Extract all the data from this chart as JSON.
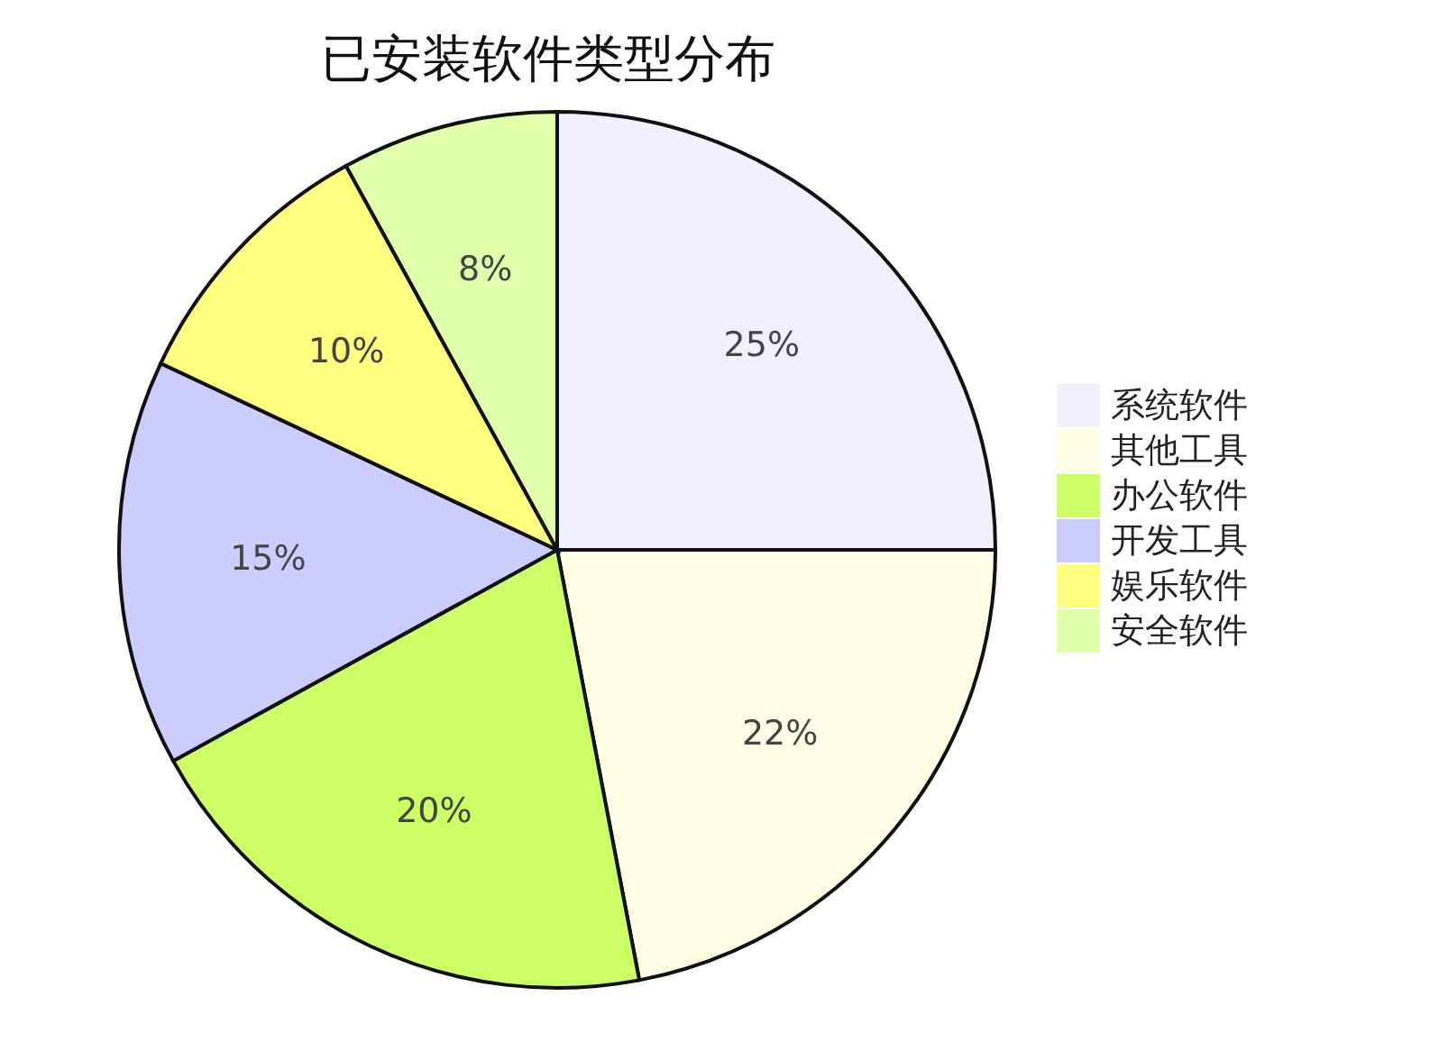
{
  "chart_data": {
    "type": "pie",
    "title": "已安装软件类型分布",
    "categories": [
      "系统软件",
      "其他工具",
      "办公软件",
      "开发工具",
      "娱乐软件",
      "安全软件"
    ],
    "values": [
      25,
      22,
      20,
      15,
      10,
      8
    ],
    "colors": [
      "#f0f0ff",
      "#ffffe6",
      "#ccff66",
      "#ccccff",
      "#ffff80",
      "#e0ffaa"
    ],
    "value_labels": [
      "25%",
      "22%",
      "20%",
      "15%",
      "10%",
      "8%"
    ],
    "legend": "right"
  }
}
